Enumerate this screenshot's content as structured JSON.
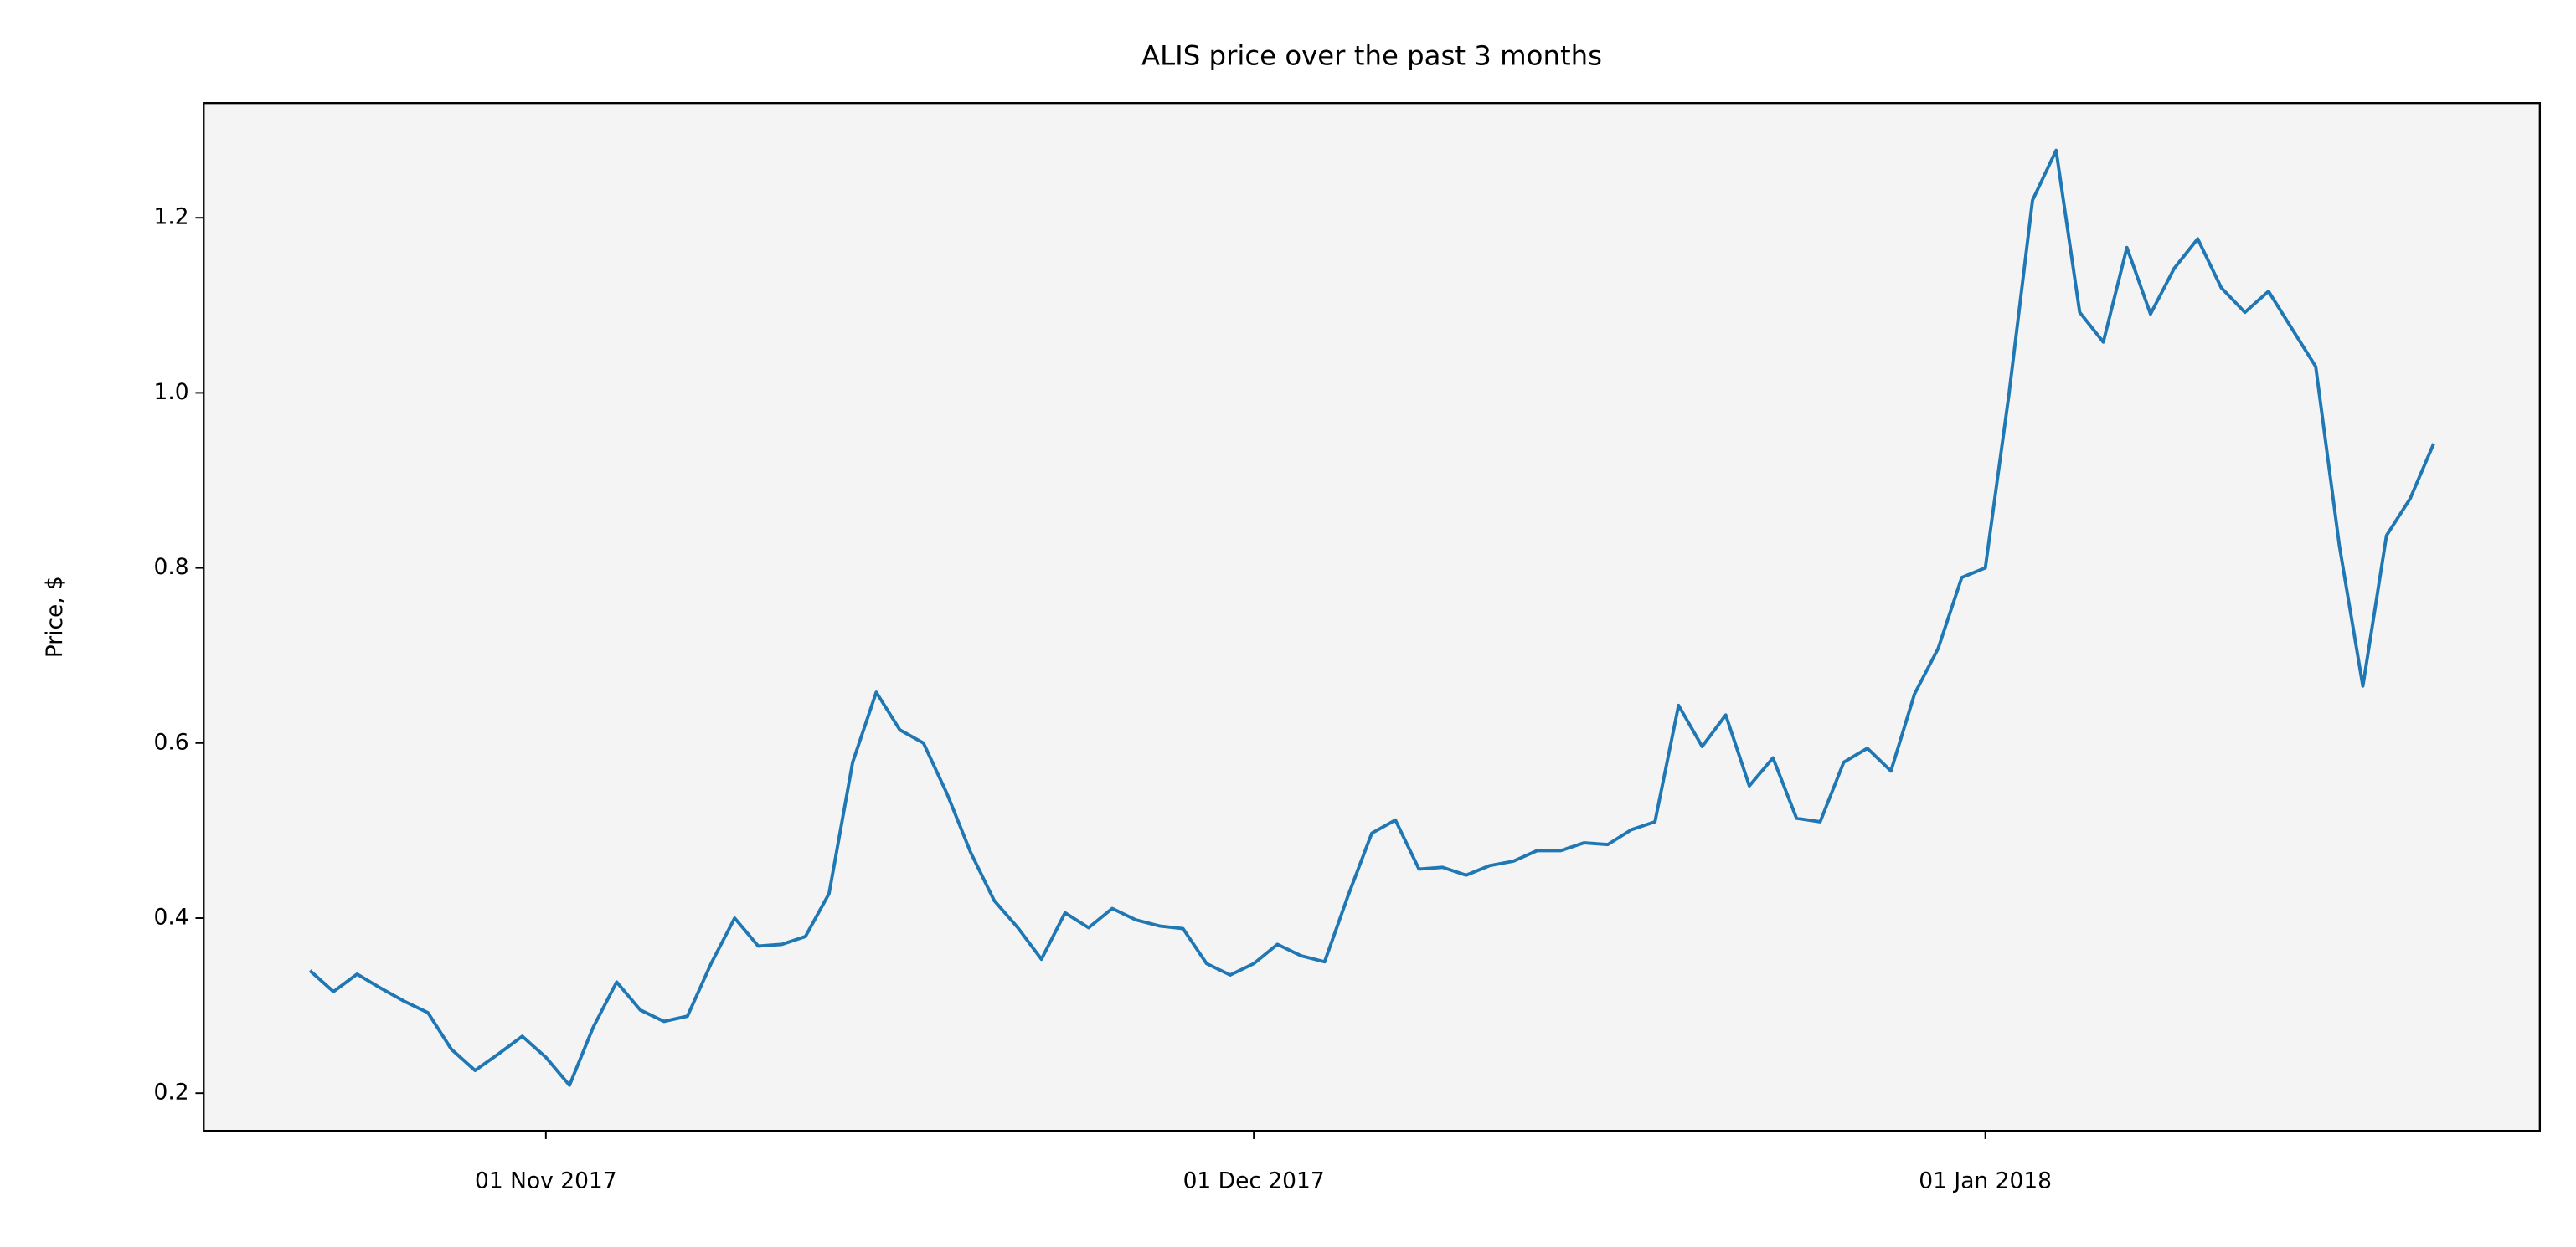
{
  "chart_data": {
    "type": "line",
    "title": "ALIS price over the past 3 months",
    "ylabel": "Price, $",
    "x": [
      "2017-10-22",
      "2017-10-23",
      "2017-10-24",
      "2017-10-25",
      "2017-10-26",
      "2017-10-27",
      "2017-10-28",
      "2017-10-29",
      "2017-10-30",
      "2017-10-31",
      "2017-11-01",
      "2017-11-02",
      "2017-11-03",
      "2017-11-04",
      "2017-11-05",
      "2017-11-06",
      "2017-11-07",
      "2017-11-08",
      "2017-11-09",
      "2017-11-10",
      "2017-11-11",
      "2017-11-12",
      "2017-11-13",
      "2017-11-14",
      "2017-11-15",
      "2017-11-16",
      "2017-11-17",
      "2017-11-18",
      "2017-11-19",
      "2017-11-20",
      "2017-11-21",
      "2017-11-22",
      "2017-11-23",
      "2017-11-24",
      "2017-11-25",
      "2017-11-26",
      "2017-11-27",
      "2017-11-28",
      "2017-11-29",
      "2017-11-30",
      "2017-12-01",
      "2017-12-02",
      "2017-12-03",
      "2017-12-04",
      "2017-12-05",
      "2017-12-06",
      "2017-12-07",
      "2017-12-08",
      "2017-12-09",
      "2017-12-10",
      "2017-12-11",
      "2017-12-12",
      "2017-12-13",
      "2017-12-14",
      "2017-12-15",
      "2017-12-16",
      "2017-12-17",
      "2017-12-18",
      "2017-12-19",
      "2017-12-20",
      "2017-12-21",
      "2017-12-22",
      "2017-12-23",
      "2017-12-24",
      "2017-12-25",
      "2017-12-26",
      "2017-12-27",
      "2017-12-28",
      "2017-12-29",
      "2017-12-30",
      "2017-12-31",
      "2018-01-01",
      "2018-01-02",
      "2018-01-03",
      "2018-01-04",
      "2018-01-05",
      "2018-01-06",
      "2018-01-07",
      "2018-01-08",
      "2018-01-09",
      "2018-01-10",
      "2018-01-11",
      "2018-01-12",
      "2018-01-13",
      "2018-01-14",
      "2018-01-15",
      "2018-01-16",
      "2018-01-17",
      "2018-01-18",
      "2018-01-19",
      "2018-01-20"
    ],
    "series": [
      {
        "color": "#1f77b4",
        "values": [
          0.34,
          0.316,
          0.336,
          0.32,
          0.305,
          0.292,
          0.25,
          0.226,
          0.245,
          0.265,
          0.241,
          0.209,
          0.275,
          0.327,
          0.295,
          0.282,
          0.288,
          0.348,
          0.4,
          0.368,
          0.37,
          0.379,
          0.428,
          0.578,
          0.658,
          0.615,
          0.6,
          0.542,
          0.475,
          0.42,
          0.389,
          0.353,
          0.406,
          0.389,
          0.411,
          0.398,
          0.391,
          0.388,
          0.348,
          0.335,
          0.348,
          0.37,
          0.357,
          0.35,
          0.426,
          0.497,
          0.512,
          0.456,
          0.458,
          0.449,
          0.46,
          0.465,
          0.477,
          0.477,
          0.486,
          0.484,
          0.501,
          0.51,
          0.643,
          0.596,
          0.632,
          0.551,
          0.583,
          0.514,
          0.51,
          0.578,
          0.594,
          0.568,
          0.656,
          0.708,
          0.789,
          0.8,
          0.998,
          1.22,
          1.277,
          1.092,
          1.058,
          1.166,
          1.09,
          1.142,
          1.176,
          1.12,
          1.092,
          1.116,
          1.073,
          1.03,
          0.826,
          0.665,
          0.837,
          0.879,
          0.942
        ]
      }
    ],
    "xlim": [
      "2017-10-17T12:00",
      "2018-01-24T12:00"
    ],
    "xticks": [
      {
        "value": "2017-11-01",
        "label": "01 Nov 2017"
      },
      {
        "value": "2017-12-01",
        "label": "01 Dec 2017"
      },
      {
        "value": "2018-01-01",
        "label": "01 Jan 2018"
      }
    ],
    "ylim": [
      0.157,
      1.331
    ],
    "yticks": [
      0.2,
      0.4,
      0.6,
      0.8,
      {
        "value": 1,
        "label": "1.0"
      },
      1.2
    ],
    "facecolor": "#f4f4f4",
    "grid": false
  }
}
